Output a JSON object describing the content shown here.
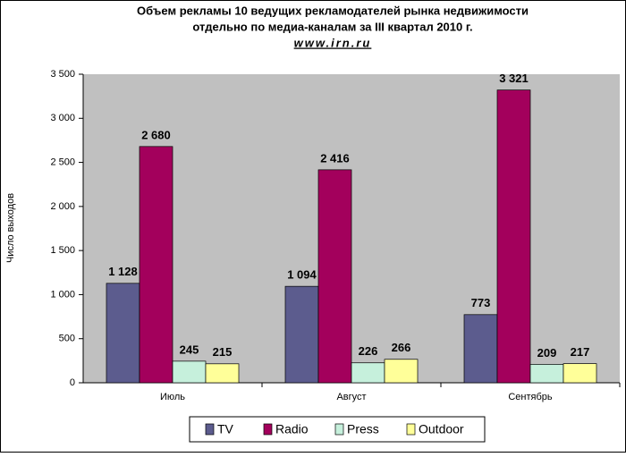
{
  "chart_data": {
    "type": "bar",
    "title": "Объем рекламы 10 ведущих рекламодателей рынка недвижимости",
    "subtitle": "отдельно по медиа-каналам за III квартал 2010 г.",
    "source": "www.irn.ru",
    "y_label": "Число выходов",
    "categories": [
      "Июль",
      "Август",
      "Сентябрь"
    ],
    "series": [
      {
        "name": "TV",
        "color": "#5c5c8e",
        "values": [
          1128,
          1094,
          773
        ],
        "value_labels": [
          "1 128",
          "1 094",
          "773"
        ]
      },
      {
        "name": "Radio",
        "color": "#a3005c",
        "values": [
          2680,
          2416,
          3321
        ],
        "value_labels": [
          "2 680",
          "2 416",
          "3 321"
        ]
      },
      {
        "name": "Press",
        "color": "#c6f0dc",
        "values": [
          245,
          226,
          209
        ],
        "value_labels": [
          "245",
          "226",
          "209"
        ]
      },
      {
        "name": "Outdoor",
        "color": "#ffff99",
        "values": [
          215,
          266,
          217
        ],
        "value_labels": [
          "215",
          "266",
          "217"
        ]
      }
    ],
    "ylim": [
      0,
      3500
    ],
    "yticks": [
      0,
      500,
      {
        "value": 1000,
        "label": "1 000"
      },
      {
        "value": 1500,
        "label": "1 500"
      },
      {
        "value": 2000,
        "label": "2 000"
      },
      {
        "value": 2500,
        "label": "2 500"
      },
      {
        "value": 3000,
        "label": "3 000"
      },
      {
        "value": 3500,
        "label": "3 500"
      }
    ],
    "legend": "bottom"
  }
}
